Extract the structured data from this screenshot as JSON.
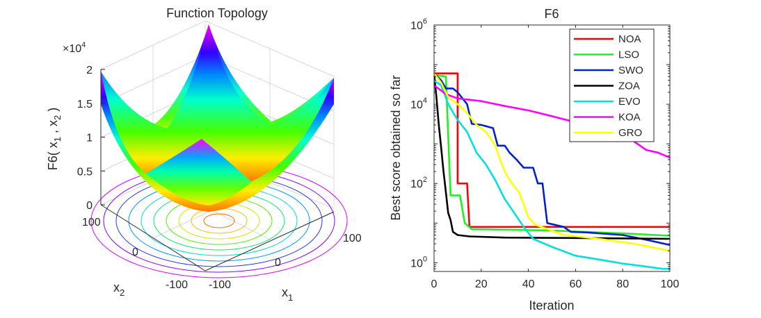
{
  "chart_data": [
    {
      "type": "surface",
      "title": "Function Topology",
      "zlabel": "F6( x",
      "zlabel_sub1": "1",
      "zlabel_mid": " , x",
      "zlabel_sub2": "2",
      "zlabel_end": " )",
      "xlabel": "x",
      "xlabel_sub": "1",
      "ylabel": "x",
      "ylabel_sub": "2",
      "z_exponent_prefix": "×10",
      "z_exponent": "4",
      "x_ticks": [
        "-100",
        "0",
        "100"
      ],
      "y_ticks": [
        "-100",
        "0",
        "100"
      ],
      "z_ticks": [
        "0",
        "0.5",
        "1",
        "1.5",
        "2"
      ],
      "x_range": [
        -100,
        100
      ],
      "y_range": [
        -100,
        100
      ],
      "z_range": [
        0,
        20000
      ],
      "grid": true,
      "colormap": "hsv"
    },
    {
      "type": "line",
      "title": "F6",
      "xlabel": "Iteration",
      "ylabel": "Best score obtained so far",
      "yscale": "log",
      "xlim": [
        0,
        100
      ],
      "ylim": [
        0.6,
        1000000
      ],
      "x_ticks": [
        "0",
        "20",
        "40",
        "60",
        "80",
        "100"
      ],
      "y_tick_base": "10",
      "y_tick_exponents": [
        "0",
        "2",
        "4",
        "6"
      ],
      "legend_position": "top-right",
      "series": [
        {
          "name": "NOA",
          "color": "#ff0000",
          "points": [
            [
              0,
              60000
            ],
            [
              10,
              60000
            ],
            [
              10,
              100
            ],
            [
              14,
              100
            ],
            [
              15,
              8
            ],
            [
              100,
              8
            ]
          ]
        },
        {
          "name": "LSO",
          "color": "#22ee22",
          "points": [
            [
              0,
              55000
            ],
            [
              5,
              50000
            ],
            [
              7,
              50
            ],
            [
              11,
              50
            ],
            [
              13,
              10
            ],
            [
              16,
              7
            ],
            [
              50,
              6.5
            ],
            [
              80,
              5.5
            ],
            [
              100,
              4.8
            ]
          ]
        },
        {
          "name": "SWO",
          "color": "#0022cc",
          "points": [
            [
              0,
              60000
            ],
            [
              3,
              40000
            ],
            [
              5,
              25000
            ],
            [
              8,
              25000
            ],
            [
              10,
              20000
            ],
            [
              14,
              10000
            ],
            [
              16,
              3200
            ],
            [
              20,
              3000
            ],
            [
              25,
              2500
            ],
            [
              27,
              900
            ],
            [
              30,
              900
            ],
            [
              32,
              600
            ],
            [
              35,
              400
            ],
            [
              38,
              250
            ],
            [
              42,
              250
            ],
            [
              44,
              100
            ],
            [
              46,
              100
            ],
            [
              48,
              10
            ],
            [
              55,
              8
            ],
            [
              58,
              6
            ],
            [
              65,
              5.8
            ],
            [
              80,
              5
            ],
            [
              90,
              3.8
            ],
            [
              100,
              2.8
            ]
          ]
        },
        {
          "name": "ZOA",
          "color": "#000000",
          "points": [
            [
              0,
              60000
            ],
            [
              1,
              15000
            ],
            [
              2,
              3000
            ],
            [
              3,
              800
            ],
            [
              4,
              200
            ],
            [
              5,
              60
            ],
            [
              6,
              18
            ],
            [
              7,
              12
            ],
            [
              8,
              6
            ],
            [
              10,
              5
            ],
            [
              15,
              4.6
            ],
            [
              30,
              4.3
            ],
            [
              60,
              4.2
            ],
            [
              100,
              4
            ]
          ]
        },
        {
          "name": "EVO",
          "color": "#00e0e0",
          "points": [
            [
              0,
              40000
            ],
            [
              3,
              30000
            ],
            [
              6,
              10000
            ],
            [
              10,
              4000
            ],
            [
              14,
              2000
            ],
            [
              18,
              600
            ],
            [
              22,
              300
            ],
            [
              26,
              120
            ],
            [
              30,
              40
            ],
            [
              34,
              18
            ],
            [
              38,
              8
            ],
            [
              42,
              4
            ],
            [
              50,
              2.5
            ],
            [
              60,
              1.5
            ],
            [
              70,
              1.2
            ],
            [
              80,
              0.95
            ],
            [
              90,
              0.8
            ],
            [
              97,
              0.7
            ],
            [
              100,
              0.7
            ]
          ]
        },
        {
          "name": "KOA",
          "color": "#ff00ff",
          "points": [
            [
              0,
              30000
            ],
            [
              5,
              18000
            ],
            [
              10,
              14000
            ],
            [
              20,
              12000
            ],
            [
              30,
              9000
            ],
            [
              40,
              7000
            ],
            [
              50,
              5000
            ],
            [
              60,
              3500
            ],
            [
              70,
              2500
            ],
            [
              80,
              1800
            ],
            [
              90,
              700
            ],
            [
              95,
              600
            ],
            [
              100,
              450
            ]
          ]
        },
        {
          "name": "GRO",
          "color": "#ffff00",
          "points": [
            [
              0,
              60000
            ],
            [
              3,
              35000
            ],
            [
              6,
              15000
            ],
            [
              10,
              10000
            ],
            [
              14,
              6000
            ],
            [
              18,
              3000
            ],
            [
              22,
              2000
            ],
            [
              26,
              900
            ],
            [
              28,
              400
            ],
            [
              30,
              200
            ],
            [
              33,
              100
            ],
            [
              36,
              60
            ],
            [
              38,
              30
            ],
            [
              40,
              14
            ],
            [
              43,
              9
            ],
            [
              50,
              6.5
            ],
            [
              55,
              5
            ],
            [
              70,
              4
            ],
            [
              85,
              3
            ],
            [
              100,
              2
            ]
          ]
        }
      ]
    }
  ]
}
